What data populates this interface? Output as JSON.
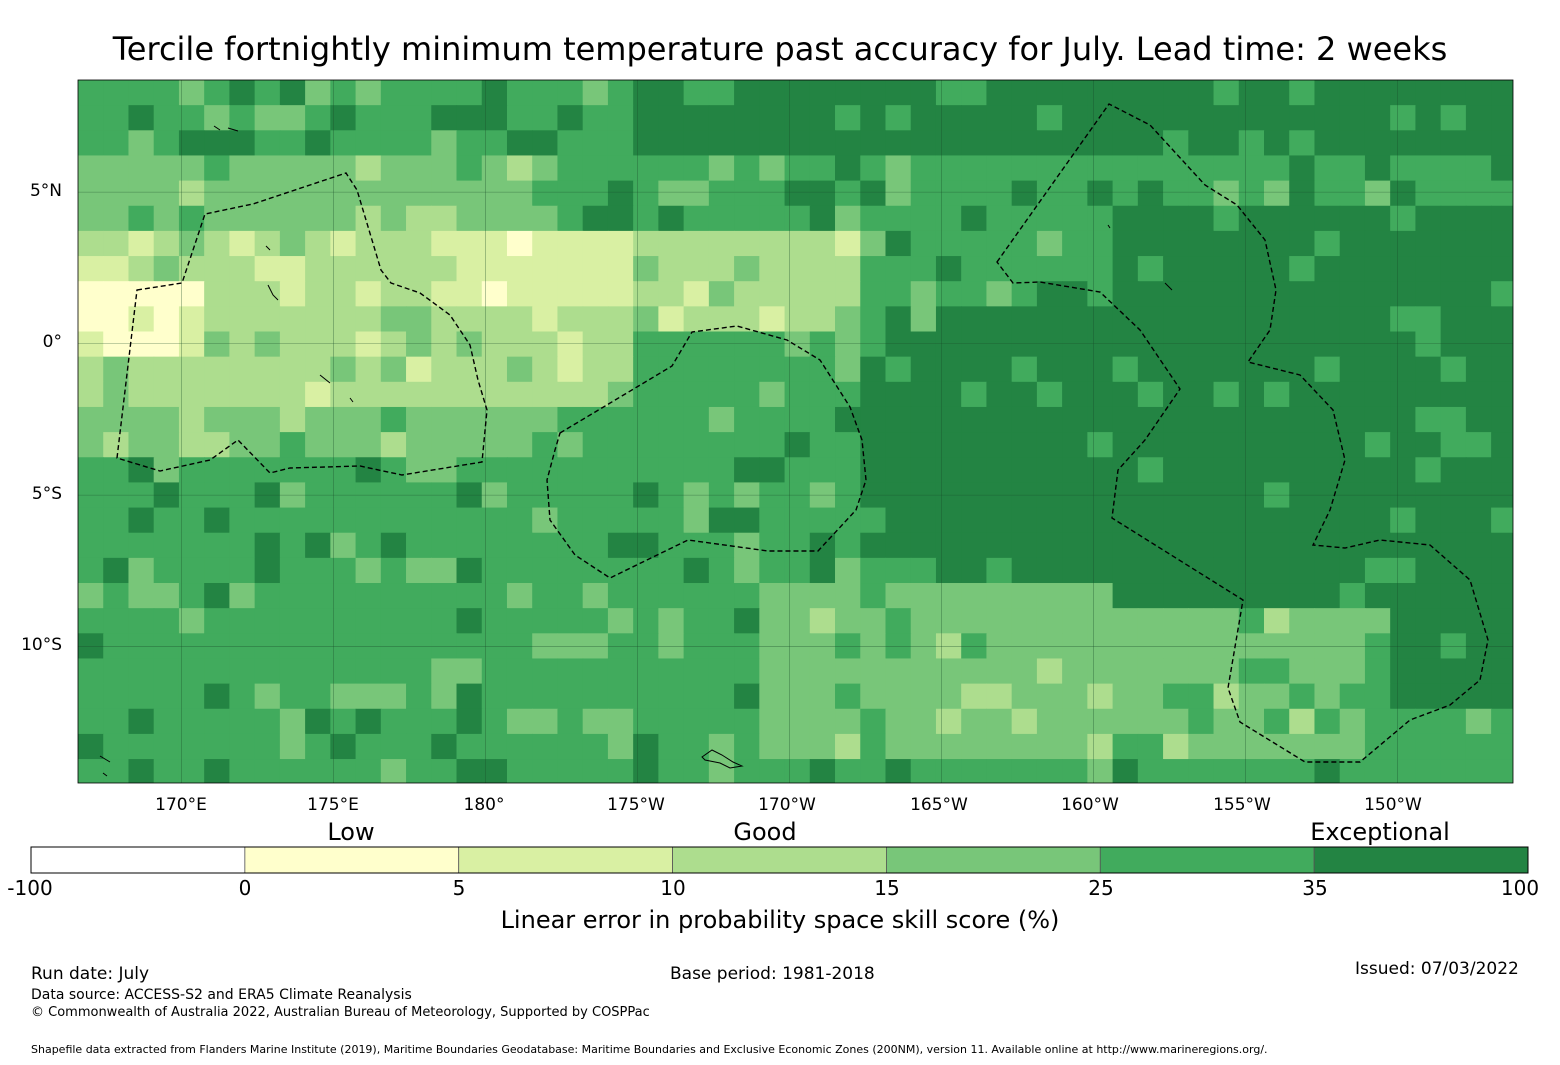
{
  "title": "Tercile fortnightly minimum temperature past accuracy for July. Lead time: 2 weeks",
  "map": {
    "lon_range_deg_east": [
      166.6,
      213.8
    ],
    "lat_range": [
      -14.5,
      8.7
    ],
    "lat_labels": [
      "5°N",
      "0°",
      "5°S",
      "10°S"
    ],
    "lat_values": [
      5,
      0,
      -5,
      -10
    ],
    "lon_labels": [
      "170°E",
      "175°E",
      "180°",
      "175°W",
      "170°W",
      "165°W",
      "160°W",
      "155°W",
      "150°W"
    ],
    "lon_values": [
      170,
      175,
      180,
      185,
      190,
      195,
      200,
      205,
      210
    ],
    "gridlines": true,
    "cell_size_deg": 0.83,
    "field_description_levels": "skill score classes drawn as colored grid cells",
    "eez_boundaries": "dashed black outlines"
  },
  "colorbar": {
    "category_labels": [
      "Low",
      "Good",
      "Exceptional"
    ],
    "ticks": [
      "-100",
      "0",
      "5",
      "10",
      "15",
      "25",
      "35",
      "100"
    ],
    "colors": [
      "#ffffff",
      "#ffffcc",
      "#d9f0a3",
      "#addd8e",
      "#78c679",
      "#41ab5d",
      "#238443"
    ],
    "label": "Linear error in probability space skill score (%)"
  },
  "footer": {
    "run_date": "Run date: July",
    "base_period": "Base period: 1981-2018",
    "issued": "Issued: 07/03/2022",
    "data_source": "Data source: ACCESS-S2 and ERA5 Climate Reanalysis",
    "copyright": "© Commonwealth of Australia 2022, Australian Bureau of Meteorology, Supported by COSPPac",
    "shapefile": "Shapefile data extracted from Flanders Marine Institute (2019), Maritime Boundaries Geodatabase: Maritime Boundaries and Exclusive Economic Zones (200NM), version 11. Available online at http://www.marineregions.org/."
  }
}
